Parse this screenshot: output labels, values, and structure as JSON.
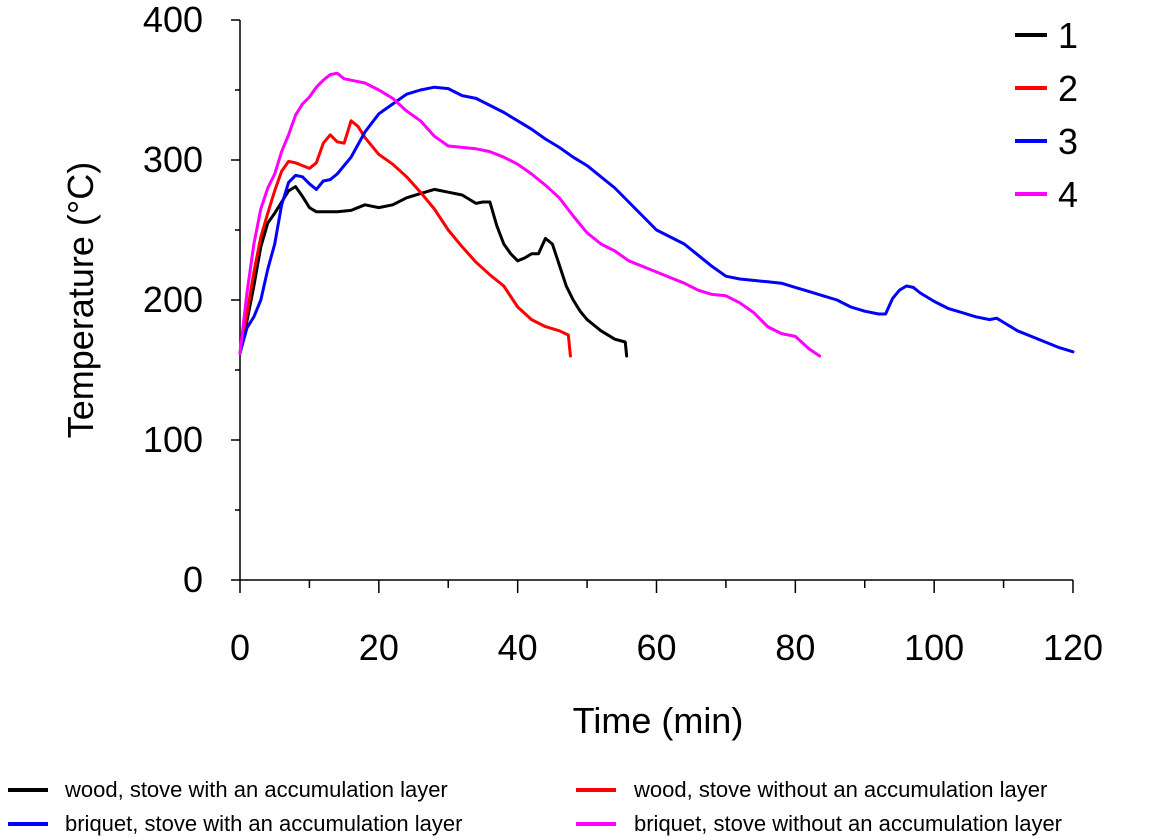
{
  "chart_data": {
    "type": "line",
    "xlabel": "Time (min)",
    "ylabel": "Temperature (°C)",
    "xlim": [
      0,
      120
    ],
    "ylim": [
      0,
      400
    ],
    "xticks": [
      0,
      20,
      40,
      60,
      80,
      100,
      120
    ],
    "yticks": [
      0,
      100,
      200,
      300,
      400
    ],
    "x_minor_ticks": [
      10,
      30,
      50,
      70,
      90,
      110
    ],
    "y_minor_ticks": [
      50,
      150,
      250,
      350
    ],
    "grid": false,
    "legend_position": "top-right",
    "series": [
      {
        "name": "1",
        "color": "#000000",
        "points": [
          [
            0,
            162
          ],
          [
            1,
            185
          ],
          [
            2,
            210
          ],
          [
            3,
            238
          ],
          [
            4,
            255
          ],
          [
            5,
            262
          ],
          [
            6,
            270
          ],
          [
            7,
            278
          ],
          [
            8,
            281
          ],
          [
            9,
            274
          ],
          [
            10,
            266
          ],
          [
            11,
            263
          ],
          [
            12,
            263
          ],
          [
            14,
            263
          ],
          [
            16,
            264
          ],
          [
            18,
            268
          ],
          [
            20,
            266
          ],
          [
            22,
            268
          ],
          [
            24,
            273
          ],
          [
            26,
            276
          ],
          [
            28,
            279
          ],
          [
            30,
            277
          ],
          [
            32,
            275
          ],
          [
            34,
            269
          ],
          [
            35,
            270
          ],
          [
            36,
            270
          ],
          [
            37,
            253
          ],
          [
            38,
            240
          ],
          [
            39,
            233
          ],
          [
            40,
            228
          ],
          [
            41,
            230
          ],
          [
            42,
            233
          ],
          [
            43,
            233
          ],
          [
            44,
            244
          ],
          [
            45,
            240
          ],
          [
            46,
            225
          ],
          [
            47,
            210
          ],
          [
            48,
            200
          ],
          [
            49,
            192
          ],
          [
            50,
            186
          ],
          [
            52,
            178
          ],
          [
            54,
            172
          ],
          [
            55.5,
            170
          ],
          [
            55.7,
            160
          ]
        ]
      },
      {
        "name": "2",
        "color": "#ff0000",
        "points": [
          [
            0,
            162
          ],
          [
            1,
            190
          ],
          [
            2,
            220
          ],
          [
            3,
            245
          ],
          [
            4,
            262
          ],
          [
            5,
            278
          ],
          [
            6,
            292
          ],
          [
            7,
            299
          ],
          [
            8,
            298
          ],
          [
            9,
            296
          ],
          [
            10,
            294
          ],
          [
            11,
            298
          ],
          [
            12,
            312
          ],
          [
            13,
            318
          ],
          [
            14,
            313
          ],
          [
            15,
            312
          ],
          [
            16,
            328
          ],
          [
            17,
            324
          ],
          [
            18,
            316
          ],
          [
            20,
            304
          ],
          [
            22,
            297
          ],
          [
            24,
            288
          ],
          [
            26,
            277
          ],
          [
            28,
            265
          ],
          [
            30,
            250
          ],
          [
            32,
            238
          ],
          [
            34,
            227
          ],
          [
            36,
            218
          ],
          [
            38,
            210
          ],
          [
            40,
            195
          ],
          [
            42,
            186
          ],
          [
            44,
            181
          ],
          [
            46,
            178
          ],
          [
            47.3,
            175
          ],
          [
            47.6,
            160
          ]
        ]
      },
      {
        "name": "3",
        "color": "#0000ff",
        "points": [
          [
            0,
            162
          ],
          [
            1,
            180
          ],
          [
            2,
            188
          ],
          [
            3,
            200
          ],
          [
            4,
            222
          ],
          [
            5,
            240
          ],
          [
            6,
            268
          ],
          [
            7,
            284
          ],
          [
            8,
            289
          ],
          [
            9,
            288
          ],
          [
            10,
            283
          ],
          [
            11,
            279
          ],
          [
            12,
            285
          ],
          [
            13,
            286
          ],
          [
            14,
            290
          ],
          [
            16,
            302
          ],
          [
            18,
            320
          ],
          [
            20,
            333
          ],
          [
            22,
            340
          ],
          [
            24,
            347
          ],
          [
            26,
            350
          ],
          [
            28,
            352
          ],
          [
            30,
            351
          ],
          [
            32,
            346
          ],
          [
            34,
            344
          ],
          [
            36,
            339
          ],
          [
            38,
            334
          ],
          [
            40,
            328
          ],
          [
            42,
            322
          ],
          [
            44,
            315
          ],
          [
            46,
            309
          ],
          [
            48,
            302
          ],
          [
            50,
            296
          ],
          [
            52,
            288
          ],
          [
            54,
            280
          ],
          [
            56,
            270
          ],
          [
            58,
            260
          ],
          [
            60,
            250
          ],
          [
            62,
            245
          ],
          [
            64,
            240
          ],
          [
            66,
            232
          ],
          [
            68,
            224
          ],
          [
            70,
            217
          ],
          [
            72,
            215
          ],
          [
            74,
            214
          ],
          [
            76,
            213
          ],
          [
            78,
            212
          ],
          [
            80,
            209
          ],
          [
            82,
            206
          ],
          [
            84,
            203
          ],
          [
            86,
            200
          ],
          [
            88,
            195
          ],
          [
            90,
            192
          ],
          [
            92,
            190
          ],
          [
            93,
            190
          ],
          [
            94,
            201
          ],
          [
            95,
            207
          ],
          [
            96,
            210
          ],
          [
            97,
            209
          ],
          [
            98,
            205
          ],
          [
            100,
            199
          ],
          [
            102,
            194
          ],
          [
            104,
            191
          ],
          [
            106,
            188
          ],
          [
            108,
            186
          ],
          [
            109,
            187
          ],
          [
            110,
            184
          ],
          [
            112,
            178
          ],
          [
            114,
            174
          ],
          [
            116,
            170
          ],
          [
            118,
            166
          ],
          [
            120,
            163
          ]
        ]
      },
      {
        "name": "4",
        "color": "#ff00ff",
        "points": [
          [
            0,
            162
          ],
          [
            1,
            205
          ],
          [
            2,
            240
          ],
          [
            3,
            265
          ],
          [
            4,
            280
          ],
          [
            5,
            290
          ],
          [
            6,
            306
          ],
          [
            7,
            318
          ],
          [
            8,
            332
          ],
          [
            9,
            340
          ],
          [
            10,
            345
          ],
          [
            11,
            352
          ],
          [
            12,
            357
          ],
          [
            13,
            361
          ],
          [
            14,
            362
          ],
          [
            15,
            358
          ],
          [
            16,
            357
          ],
          [
            18,
            355
          ],
          [
            20,
            350
          ],
          [
            22,
            344
          ],
          [
            24,
            335
          ],
          [
            26,
            328
          ],
          [
            28,
            317
          ],
          [
            30,
            310
          ],
          [
            32,
            309
          ],
          [
            34,
            308
          ],
          [
            36,
            306
          ],
          [
            38,
            302
          ],
          [
            40,
            297
          ],
          [
            42,
            290
          ],
          [
            44,
            282
          ],
          [
            46,
            273
          ],
          [
            48,
            260
          ],
          [
            50,
            248
          ],
          [
            52,
            240
          ],
          [
            54,
            235
          ],
          [
            56,
            228
          ],
          [
            58,
            224
          ],
          [
            60,
            220
          ],
          [
            62,
            216
          ],
          [
            64,
            212
          ],
          [
            66,
            207
          ],
          [
            68,
            204
          ],
          [
            70,
            203
          ],
          [
            72,
            198
          ],
          [
            74,
            191
          ],
          [
            76,
            181
          ],
          [
            78,
            176
          ],
          [
            80,
            174
          ],
          [
            82,
            165
          ],
          [
            83.5,
            160
          ]
        ]
      }
    ],
    "bottom_legend": [
      {
        "color": "#000000",
        "label": "wood, stove with an accumulation layer"
      },
      {
        "color": "#ff0000",
        "label": "wood, stove without an accumulation layer"
      },
      {
        "color": "#0000ff",
        "label": "briquet, stove with an accumulation layer"
      },
      {
        "color": "#ff00ff",
        "label": "briquet, stove without an accumulation layer"
      }
    ]
  }
}
